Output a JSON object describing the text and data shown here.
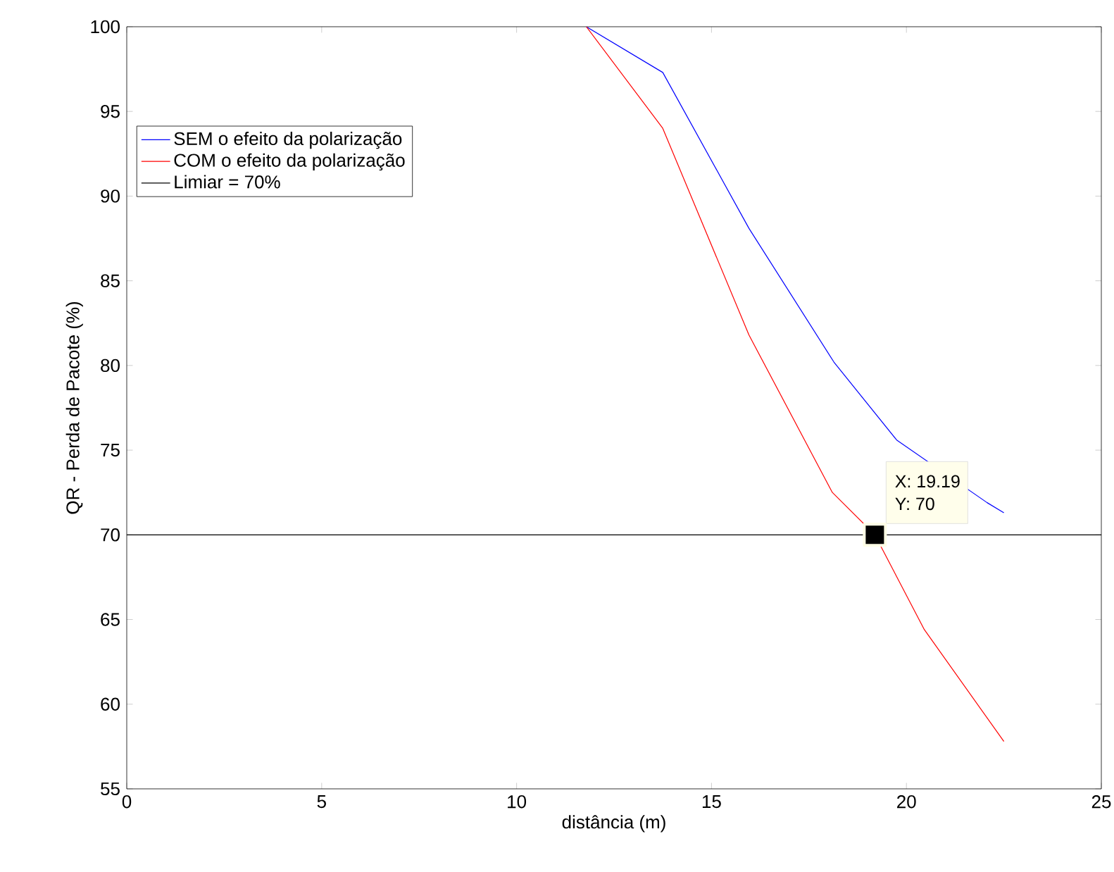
{
  "chart_data": {
    "type": "line",
    "xlabel": "distância (m)",
    "ylabel": "QR - Perda de Pacote (%)",
    "xlim": [
      0,
      25
    ],
    "xticks": [
      0,
      5,
      10,
      15,
      20,
      25
    ],
    "ylim": [
      55,
      100
    ],
    "yticks": [
      55,
      60,
      65,
      70,
      75,
      80,
      85,
      90,
      95,
      100
    ],
    "series": [
      {
        "name": "SEM o efeito da polarização",
        "color": "#0000ff",
        "x": [
          11.79,
          13.75,
          15.96,
          18.14,
          19.75,
          22.07,
          22.5
        ],
        "values": [
          100,
          97.3,
          88.1,
          80.2,
          75.6,
          71.9,
          71.3
        ]
      },
      {
        "name": "COM o efeito da polarização",
        "color": "#ff0000",
        "x": [
          11.79,
          13.75,
          15.96,
          18.1,
          19.19,
          20.46,
          22.5
        ],
        "values": [
          100,
          94.0,
          81.8,
          72.5,
          70,
          64.4,
          57.8
        ]
      }
    ],
    "ref_lines": [
      {
        "axis": "y",
        "value": 70,
        "label": "Limiar = 70%",
        "color": "#000000"
      }
    ],
    "annotations": [
      {
        "text": "X: 19.19",
        "x": 19.19,
        "y": 70
      },
      {
        "text": "Y: 70",
        "x": 19.19,
        "y": 70
      }
    ],
    "legend": "top left",
    "grid": false,
    "marker": "none",
    "line_style": "solid"
  }
}
